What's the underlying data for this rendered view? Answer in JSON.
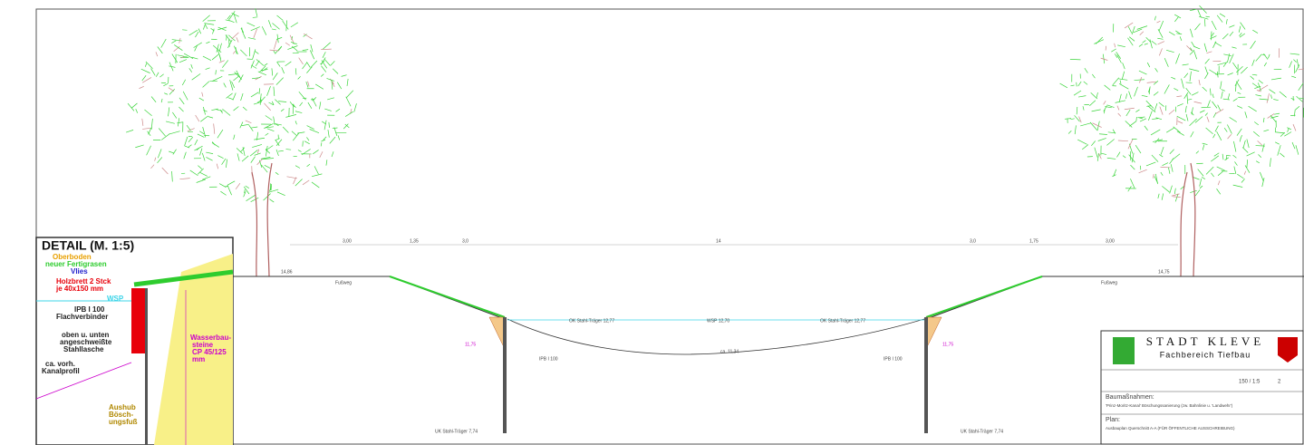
{
  "detail": {
    "title": "DETAIL (M. 1:5)",
    "labels": [
      "Oberboden",
      "neuer Fertigrasen",
      "Vlies",
      "Holzbrett 2 Stck",
      "je 40x150 mm",
      "WSP",
      "IPB I 100",
      "Flachverbinder",
      "oben u. unten",
      "angeschweißte",
      "Stahllasche",
      "ca. vorh.",
      "Kanalprofil",
      "Wasserbau-",
      "steine",
      "CP 45/125",
      "mm",
      "Aushub",
      "Bösch-",
      "ungsfuß"
    ]
  },
  "section": {
    "dims": [
      "3,00",
      "1,35",
      "3,0",
      "14",
      "3,0",
      "1,75",
      "3,00"
    ],
    "levels": {
      "left_top": "14,86",
      "right_top": "14,75",
      "ok_left": "OK Stahl-Träger 12,77",
      "ok_right": "OK Stahl-Träger 12,77",
      "wsp": "WSP 12,70",
      "bottom": "ca. 11,34",
      "uk_left": "UK Stahl-Träger 7,74",
      "uk_right": "UK Stahl-Träger 7,74",
      "left_low": "11,75",
      "right_low": "11,75",
      "ipb_left": "IPB I 100",
      "ipb_right": "IPB I 100"
    },
    "walk_left": "Fußweg",
    "walk_right": "Fußweg"
  },
  "title_block": {
    "city": "STADT KLEVE",
    "dept": "Fachbereich Tiefbau",
    "project_label": "Baumaßnahmen:",
    "project": "'Prinz-Moritz-Kanal' Böschungssanierung (zw. Bahnlinie u. 'Landwehr')",
    "plan_label": "Plan:",
    "plan": "Ausbauplan Querschnitt A-A (FÜR ÖFFENTLICHE AUSSCHREIBUNG)",
    "scale": "150 / 1:5",
    "sheet": "2"
  }
}
